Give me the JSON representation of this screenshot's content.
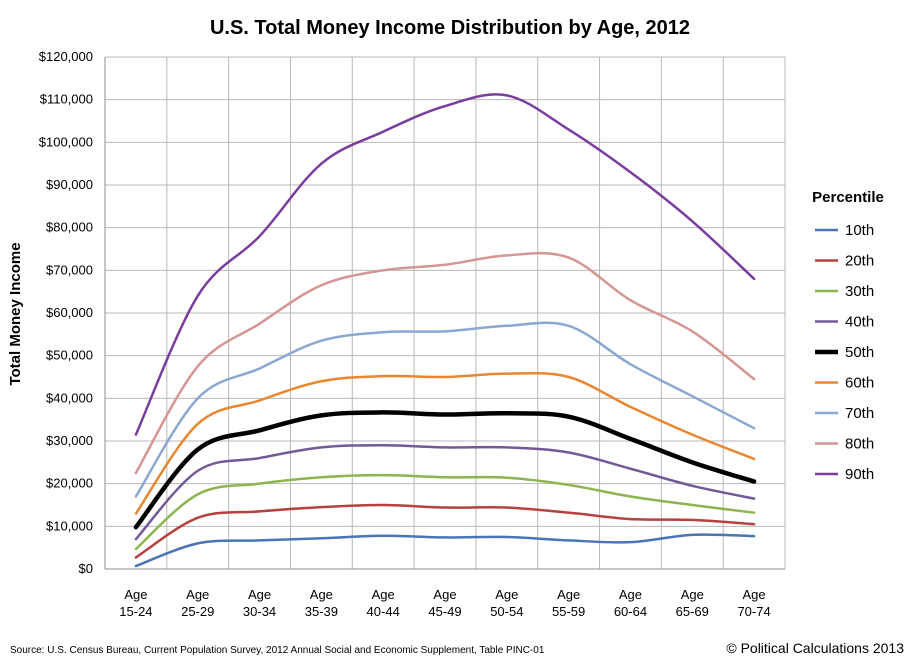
{
  "chart_data": {
    "type": "line",
    "title": "U.S. Total Money Income Distribution by Age, 2012",
    "ylabel": "Total Money Income",
    "xlabel": "",
    "categories": [
      [
        "Age",
        "15-24"
      ],
      [
        "Age",
        "25-29"
      ],
      [
        "Age",
        "30-34"
      ],
      [
        "Age",
        "35-39"
      ],
      [
        "Age",
        "40-44"
      ],
      [
        "Age",
        "45-49"
      ],
      [
        "Age",
        "50-54"
      ],
      [
        "Age",
        "55-59"
      ],
      [
        "Age",
        "60-64"
      ],
      [
        "Age",
        "65-69"
      ],
      [
        "Age",
        "70-74"
      ]
    ],
    "ylim": [
      0,
      120000
    ],
    "yticks": [
      "$0",
      "$10,000",
      "$20,000",
      "$30,000",
      "$40,000",
      "$50,000",
      "$60,000",
      "$70,000",
      "$80,000",
      "$90,000",
      "$100,000",
      "$110,000",
      "$120,000"
    ],
    "grid": true,
    "smooth": true,
    "legend_title": "Percentile",
    "legend_position": "right",
    "series": [
      {
        "name": "10th",
        "color": "#4a74b5",
        "width": 2.5,
        "values": [
          700,
          6000,
          6700,
          7200,
          7800,
          7400,
          7500,
          6700,
          6300,
          8000,
          7700
        ]
      },
      {
        "name": "20th",
        "color": "#b5423f",
        "width": 2.5,
        "values": [
          2700,
          12000,
          13500,
          14500,
          15000,
          14400,
          14400,
          13200,
          11700,
          11500,
          10500
        ]
      },
      {
        "name": "30th",
        "color": "#8eb450",
        "width": 2.5,
        "values": [
          4700,
          17500,
          20000,
          21500,
          22000,
          21500,
          21400,
          19700,
          17000,
          15000,
          13200
        ]
      },
      {
        "name": "40th",
        "color": "#735a96",
        "width": 2.5,
        "values": [
          7000,
          23000,
          26000,
          28500,
          29000,
          28500,
          28500,
          27300,
          23500,
          19500,
          16500
        ]
      },
      {
        "name": "50th",
        "color": "#000000",
        "width": 4.5,
        "values": [
          9800,
          28000,
          32500,
          36000,
          36700,
          36200,
          36500,
          35700,
          30500,
          25000,
          20500
        ]
      },
      {
        "name": "60th",
        "color": "#e98630",
        "width": 2.5,
        "values": [
          13000,
          34000,
          39500,
          44000,
          45200,
          45000,
          45800,
          45000,
          38000,
          31500,
          25800
        ]
      },
      {
        "name": "70th",
        "color": "#8ba8d2",
        "width": 2.5,
        "values": [
          17000,
          40000,
          47000,
          53500,
          55500,
          55700,
          57000,
          57000,
          48000,
          40500,
          33000
        ]
      },
      {
        "name": "80th",
        "color": "#d49594",
        "width": 2.5,
        "values": [
          22500,
          47500,
          57500,
          66500,
          70000,
          71300,
          73500,
          73000,
          63000,
          55700,
          44500
        ]
      },
      {
        "name": "90th",
        "color": "#7a3d9e",
        "width": 2.5,
        "values": [
          31500,
          64000,
          78000,
          95000,
          102500,
          108500,
          111000,
          103000,
          93000,
          81500,
          68000
        ]
      }
    ]
  },
  "footer": {
    "source": "Source: U.S. Census Bureau, Current Population Survey, 2012 Annual Social and Economic Supplement, Table PINC-01",
    "credit": "© Political Calculations 2013"
  }
}
